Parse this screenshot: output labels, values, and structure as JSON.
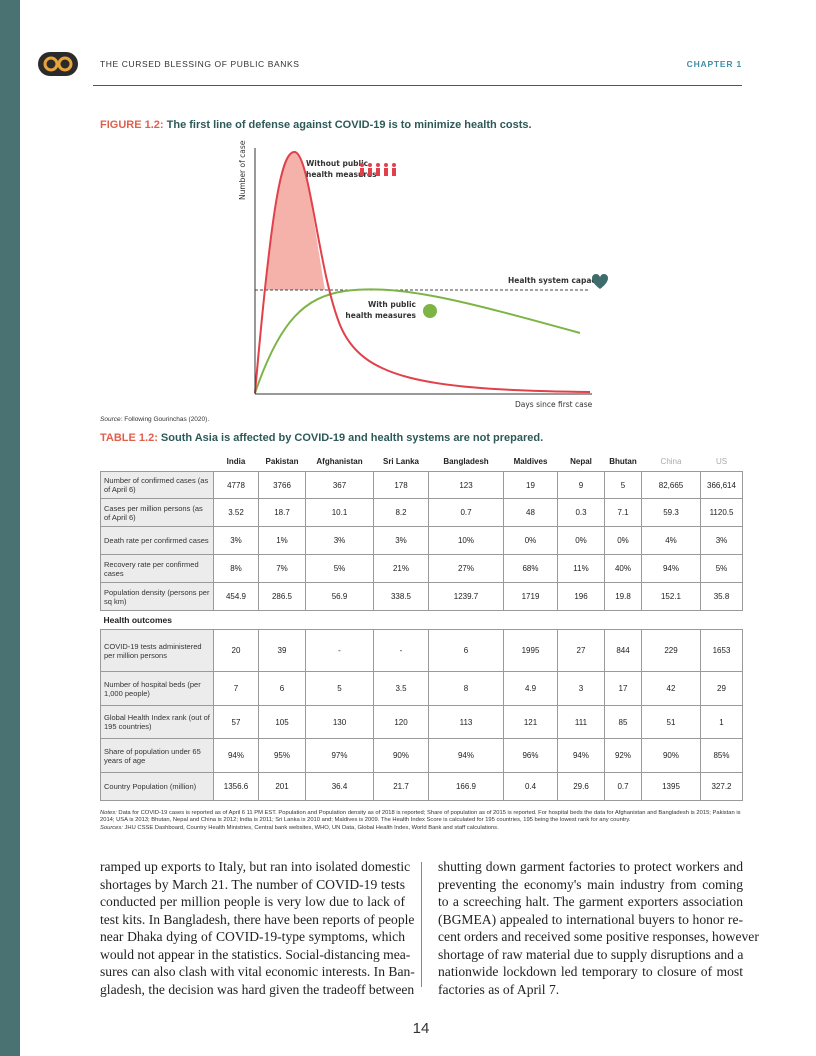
{
  "header": {
    "title": "THE CURSED BLESSING OF PUBLIC BANKS",
    "chapter": "CHAPTER 1"
  },
  "figure": {
    "title_label": "FIGURE 1.2:",
    "title": "The first line of defense against COVID-19 is to minimize health costs.",
    "y_axis_label": "Number of cases",
    "x_axis_label": "Days since first case",
    "without_label": [
      "Without public",
      "health measures"
    ],
    "with_label": [
      "With public",
      "health measures"
    ],
    "capacity_label": "Health system capacity",
    "source_label": "Source:",
    "source": "Following Gourinchas (2020)."
  },
  "table": {
    "title_label": "TABLE 1.2:",
    "title": "South Asia is affected by COVID-19 and health systems are not prepared.",
    "columns": [
      "India",
      "Pakistan",
      "Afghanistan",
      "Sri Lanka",
      "Bangladesh",
      "Maldives",
      "Nepal",
      "Bhutan",
      "China",
      "US"
    ],
    "rows": [
      {
        "label": "Number of confirmed cases (as of April 6)",
        "cells": [
          "4778",
          "3766",
          "367",
          "178",
          "123",
          "19",
          "9",
          "5",
          "82,665",
          "366,614"
        ]
      },
      {
        "label": "Cases per million persons (as of April 6)",
        "cells": [
          "3.52",
          "18.7",
          "10.1",
          "8.2",
          "0.7",
          "48",
          "0.3",
          "7.1",
          "59.3",
          "1120.5"
        ]
      },
      {
        "label": "Death rate per confirmed cases",
        "cells": [
          "3%",
          "1%",
          "3%",
          "3%",
          "10%",
          "0%",
          "0%",
          "0%",
          "4%",
          "3%"
        ]
      },
      {
        "label": "Recovery rate per confirmed cases",
        "cells": [
          "8%",
          "7%",
          "5%",
          "21%",
          "27%",
          "68%",
          "11%",
          "40%",
          "94%",
          "5%"
        ]
      },
      {
        "label": "Population density (persons per sq km)",
        "cells": [
          "454.9",
          "286.5",
          "56.9",
          "338.5",
          "1239.7",
          "1719",
          "196",
          "19.8",
          "152.1",
          "35.8"
        ]
      }
    ],
    "section": "Health outcomes",
    "outcome_rows": [
      {
        "label": "COVID-19 tests administered per million persons",
        "cells": [
          "20",
          "39",
          "-",
          "-",
          "6",
          "1995",
          "27",
          "844",
          "229",
          "1653"
        ]
      },
      {
        "label": "Number of hospital beds (per 1,000 people)",
        "cells": [
          "7",
          "6",
          "5",
          "3.5",
          "8",
          "4.9",
          "3",
          "17",
          "42",
          "29"
        ]
      },
      {
        "label": "Global Health Index rank (out of 195 countries)",
        "cells": [
          "57",
          "105",
          "130",
          "120",
          "113",
          "121",
          "111",
          "85",
          "51",
          "1"
        ]
      },
      {
        "label": "Share of population under 65 years of age",
        "cells": [
          "94%",
          "95%",
          "97%",
          "90%",
          "94%",
          "96%",
          "94%",
          "92%",
          "90%",
          "85%"
        ]
      },
      {
        "label": "Country Population (million)",
        "cells": [
          "1356.6",
          "201",
          "36.4",
          "21.7",
          "166.9",
          "0.4",
          "29.6",
          "0.7",
          "1395",
          "327.2"
        ]
      }
    ],
    "notes_label": "Notes:",
    "notes": "Data for COVID-19 cases is reported as of April 6 11 PM EST. Population and Population density as of 2018 is reported; Share of population as of 2015 is reported. For hospital beds the data for Afghanistan and Bangladesh is 2015; Pakistan is 2014; USA is 2013; Bhutan, Nepal and China is 2012; India is 2011; Sri Lanka is 2010 and; Maldives is 2009. The Health Index Score is calculated for 195 countries, 195 being the lowest rank for any country.",
    "sources_label": "Sources:",
    "sources": "JHU CSSE Dashboard, Country Health Ministries, Central bank websites, WHO, UN Data, Global Health Index, World Bank and staff calculations."
  },
  "body": {
    "left": [
      "ramped up exports to Italy, but ran into isolated domestic",
      "shortages by March 21. The number of COVID-19 tests",
      "conducted per million people is very low due to lack of",
      "test kits. In Bangladesh, there have been reports of people",
      "near Dhaka dying of COVID-19-type symptoms, which",
      "would not appear in the statistics. Social-distancing mea-",
      "sures can also clash with vital economic interests. In Ban-",
      "gladesh, the decision was hard given the tradeoff between"
    ],
    "right": [
      "shutting down garment factories to protect workers and",
      "preventing the economy's main industry from coming",
      "to a screeching halt. The garment exporters association",
      "(BGMEA) appealed to international buyers to honor re-",
      "cent orders and received some positive responses, however",
      "shortage of raw material due to supply disruptions and a",
      "nationwide lockdown led temporary to closure of most",
      "factories as of April 7."
    ]
  },
  "page_number": "14"
}
